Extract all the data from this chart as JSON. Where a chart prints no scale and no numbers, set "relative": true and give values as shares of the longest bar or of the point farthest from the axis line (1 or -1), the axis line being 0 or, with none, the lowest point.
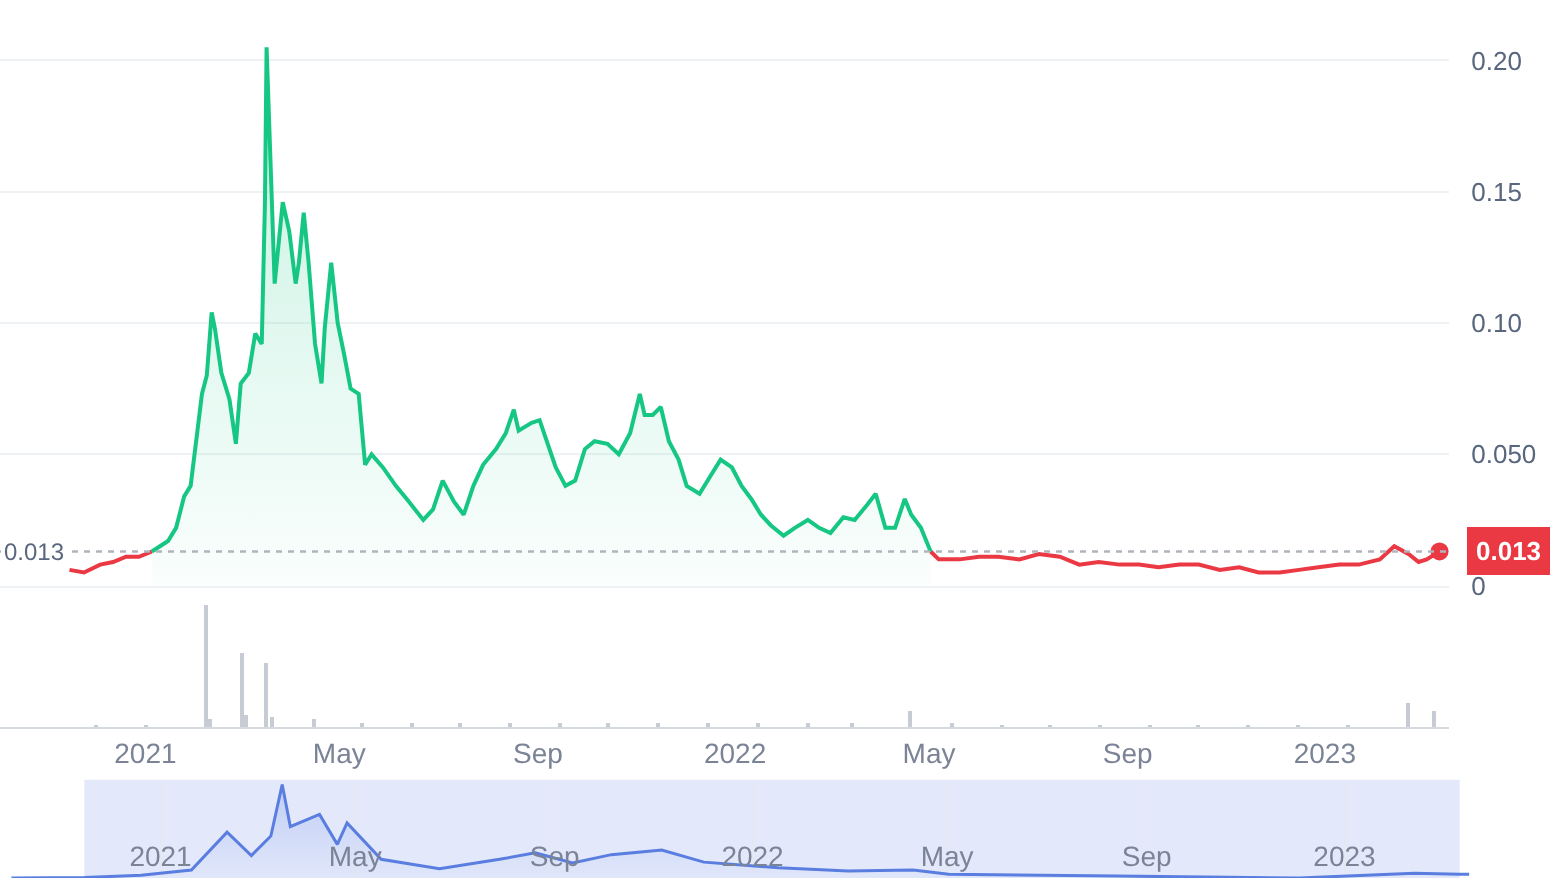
{
  "chart_data": [
    {
      "type": "line",
      "x": [
        "2020-11-15",
        "2020-11-24",
        "2020-12-04",
        "2020-12-12",
        "2020-12-20",
        "2020-12-28",
        "2021-01-05",
        "2021-01-10",
        "2021-01-15",
        "2021-01-20",
        "2021-01-25",
        "2021-01-29",
        "2021-02-02",
        "2021-02-05",
        "2021-02-08",
        "2021-02-11",
        "2021-02-13",
        "2021-02-17",
        "2021-02-22",
        "2021-02-26",
        "2021-03-01",
        "2021-03-06",
        "2021-03-10",
        "2021-03-14",
        "2021-03-16",
        "2021-03-17",
        "2021-03-19",
        "2021-03-22",
        "2021-03-27",
        "2021-03-31",
        "2021-04-04",
        "2021-04-06",
        "2021-04-09",
        "2021-04-12",
        "2021-04-16",
        "2021-04-20",
        "2021-04-22",
        "2021-04-26",
        "2021-04-30",
        "2021-05-04",
        "2021-05-08",
        "2021-05-13",
        "2021-05-17",
        "2021-05-21",
        "2021-05-28",
        "2021-06-05",
        "2021-06-13",
        "2021-06-22",
        "2021-06-28",
        "2021-07-04",
        "2021-07-11",
        "2021-07-17",
        "2021-07-23",
        "2021-07-29",
        "2021-08-06",
        "2021-08-12",
        "2021-08-17",
        "2021-08-20",
        "2021-08-28",
        "2021-09-02",
        "2021-09-07",
        "2021-09-12",
        "2021-09-18",
        "2021-09-24",
        "2021-09-30",
        "2021-10-06",
        "2021-10-14",
        "2021-10-21",
        "2021-10-28",
        "2021-11-03",
        "2021-11-06",
        "2021-11-11",
        "2021-11-16",
        "2021-11-21",
        "2021-11-27",
        "2021-12-02",
        "2021-12-10",
        "2021-12-17",
        "2021-12-23",
        "2021-12-30",
        "2022-01-05",
        "2022-01-11",
        "2022-01-17",
        "2022-01-23",
        "2022-01-31",
        "2022-02-07",
        "2022-02-15",
        "2022-02-22",
        "2022-03-01",
        "2022-03-09",
        "2022-03-16",
        "2022-03-24",
        "2022-03-29",
        "2022-04-04",
        "2022-04-10",
        "2022-04-16",
        "2022-04-20",
        "2022-04-26",
        "2022-05-02",
        "2022-05-07",
        "2022-05-20",
        "2022-06-01",
        "2022-06-13",
        "2022-06-26",
        "2022-07-08",
        "2022-07-21",
        "2022-08-02",
        "2022-08-14",
        "2022-08-27",
        "2022-09-08",
        "2022-09-20",
        "2022-10-03",
        "2022-10-15",
        "2022-10-28",
        "2022-11-09",
        "2022-11-21",
        "2022-12-04",
        "2022-12-16",
        "2022-12-28",
        "2023-01-10",
        "2023-01-22",
        "2023-02-04",
        "2023-02-13",
        "2023-02-22",
        "2023-02-28",
        "2023-03-05",
        "2023-03-13"
      ],
      "series": [
        {
          "type": "line",
          "color": "#ea3943",
          "values": [
            0.006,
            0.005,
            0.008,
            0.009,
            0.011,
            0.011,
            0.013,
            null,
            null,
            null,
            null,
            null,
            null,
            null,
            null,
            null,
            null,
            null,
            null,
            null,
            null,
            null,
            null,
            null,
            null,
            null,
            null,
            null,
            null,
            null,
            null,
            null,
            null,
            null,
            null,
            null,
            null,
            null,
            null,
            null,
            null,
            null,
            null,
            null,
            null,
            null,
            null,
            null,
            null,
            null,
            null,
            null,
            null,
            null,
            null,
            null,
            null,
            null,
            null,
            null,
            null,
            null,
            null,
            null,
            null,
            null,
            null,
            null,
            null,
            null,
            null,
            null,
            null,
            null,
            null,
            null,
            null,
            null,
            null,
            null,
            null,
            null,
            null,
            null,
            null,
            null,
            null,
            null,
            null,
            null,
            null,
            null,
            null,
            null,
            null,
            null,
            null,
            null,
            0.013,
            0.01,
            0.01,
            0.011,
            0.011,
            0.01,
            0.012,
            0.011,
            0.008,
            0.009,
            0.008,
            0.008,
            0.007,
            0.008,
            0.008,
            0.006,
            0.007,
            0.005,
            0.005,
            0.006,
            0.007,
            0.008,
            0.008,
            0.01,
            0.015,
            0.012,
            0.009,
            0.01,
            0.013
          ]
        },
        {
          "type": "area",
          "color": "#16c784",
          "values": [
            null,
            null,
            null,
            null,
            null,
            null,
            0.013,
            0.015,
            0.017,
            0.022,
            0.034,
            0.038,
            0.058,
            0.073,
            0.08,
            0.104,
            0.098,
            0.081,
            0.071,
            0.054,
            0.077,
            0.081,
            0.096,
            0.092,
            0.146,
            0.205,
            0.169,
            0.115,
            0.146,
            0.135,
            0.115,
            0.123,
            0.142,
            0.123,
            0.092,
            0.077,
            0.098,
            0.123,
            0.1,
            0.088,
            0.075,
            0.073,
            0.046,
            0.05,
            0.045,
            0.038,
            0.032,
            0.025,
            0.029,
            0.04,
            0.032,
            0.027,
            0.038,
            0.046,
            0.052,
            0.058,
            0.067,
            0.059,
            0.062,
            0.063,
            0.054,
            0.045,
            0.038,
            0.04,
            0.052,
            0.055,
            0.054,
            0.05,
            0.058,
            0.073,
            0.065,
            0.065,
            0.068,
            0.055,
            0.048,
            0.038,
            0.035,
            0.042,
            0.048,
            0.045,
            0.038,
            0.033,
            0.027,
            0.023,
            0.019,
            0.022,
            0.025,
            0.022,
            0.02,
            0.026,
            0.025,
            0.031,
            0.035,
            0.022,
            0.022,
            0.033,
            0.027,
            0.022,
            0.013,
            null,
            null,
            null,
            null,
            null,
            null,
            null,
            null,
            null,
            null,
            null,
            null,
            null,
            null,
            null,
            null,
            null,
            null,
            null,
            null,
            null,
            null,
            null,
            null,
            null,
            null,
            null,
            null
          ]
        }
      ],
      "xlim": [
        "2020-10-03",
        "2023-03-19"
      ],
      "ylim": [
        0,
        0.223
      ],
      "yticks": [
        0,
        {
          "value": 0.05,
          "label": "0.050"
        },
        {
          "value": 0.1,
          "label": "0.10"
        },
        {
          "value": 0.15,
          "label": "0.15"
        },
        {
          "value": 0.2,
          "label": "0.20"
        }
      ],
      "grid": "y",
      "tick_labels": "y",
      "ref_lines": [
        {
          "axis": "y",
          "value": 0.013,
          "label": "0.013",
          "color": "#b0b4bd",
          "line_style": "dotted"
        }
      ],
      "annotations": [
        {
          "text": "0.013",
          "x": "2023-03-13",
          "y": 0.013
        }
      ]
    },
    {
      "type": "bar",
      "relative": true,
      "color": "#c7cbd3",
      "x": [
        "2020-12-01",
        "2021-01-01",
        "2021-02-08",
        "2021-02-10",
        "2021-03-02",
        "2021-03-05",
        "2021-03-17",
        "2021-03-20",
        "2021-04-15",
        "2021-05-15",
        "2021-06-15",
        "2021-07-15",
        "2021-08-15",
        "2021-09-15",
        "2021-10-15",
        "2021-11-15",
        "2021-12-15",
        "2022-01-15",
        "2022-02-15",
        "2022-03-15",
        "2022-04-20",
        "2022-05-15",
        "2022-06-15",
        "2022-07-15",
        "2022-08-15",
        "2022-09-15",
        "2022-10-15",
        "2022-11-15",
        "2022-12-15",
        "2023-01-15",
        "2023-02-22",
        "2023-03-10"
      ],
      "values": [
        0.02,
        0.02,
        1,
        0.06,
        0.61,
        0.1,
        0.53,
        0.08,
        0.06,
        0.04,
        0.03,
        0.03,
        0.04,
        0.04,
        0.03,
        0.04,
        0.03,
        0.03,
        0.03,
        0.03,
        0.14,
        0.03,
        0.02,
        0.02,
        0.02,
        0.02,
        0.02,
        0.02,
        0.02,
        0.02,
        0.2,
        0.14
      ],
      "xlim": [
        "2020-10-03",
        "2023-03-19"
      ],
      "xticks": [
        {
          "value": "2021-01-01",
          "label": "2021"
        },
        {
          "value": "2021-05-01",
          "label": "May"
        },
        {
          "value": "2021-09-01",
          "label": "Sep"
        },
        {
          "value": "2022-01-01",
          "label": "2022"
        },
        {
          "value": "2022-05-01",
          "label": "May"
        },
        {
          "value": "2022-09-01",
          "label": "Sep"
        },
        {
          "value": "2023-01-01",
          "label": "2023"
        }
      ],
      "tick_labels": "x",
      "grid": false
    },
    {
      "type": "area",
      "relative": true,
      "color": "#5a7de0",
      "x": [
        "2020-10-01",
        "2020-11-15",
        "2020-12-20",
        "2021-01-20",
        "2021-02-11",
        "2021-02-26",
        "2021-03-10",
        "2021-03-17",
        "2021-03-22",
        "2021-04-09",
        "2021-04-20",
        "2021-04-26",
        "2021-05-17",
        "2021-06-22",
        "2021-07-29",
        "2021-08-20",
        "2021-09-12",
        "2021-10-06",
        "2021-11-06",
        "2021-12-02",
        "2022-01-17",
        "2022-03-01",
        "2022-04-10",
        "2022-05-02",
        "2022-08-14",
        "2022-12-04",
        "2023-02-13",
        "2023-03-13",
        "2023-03-19"
      ],
      "values": [
        0,
        0.005,
        0.03,
        0.085,
        0.49,
        0.24,
        0.45,
        1,
        0.55,
        0.68,
        0.36,
        0.59,
        0.2,
        0.1,
        0.2,
        0.27,
        0.16,
        0.25,
        0.3,
        0.17,
        0.11,
        0.075,
        0.085,
        0.04,
        0.02,
        0,
        0.05,
        0.04,
        0.04
      ],
      "xlim": [
        "2020-09-24",
        "2023-03-19"
      ],
      "xticks": [
        {
          "value": "2021-01-01",
          "label": "2021"
        },
        {
          "value": "2021-05-01",
          "label": "May"
        },
        {
          "value": "2021-09-01",
          "label": "Sep"
        },
        {
          "value": "2022-01-01",
          "label": "2022"
        },
        {
          "value": "2022-05-01",
          "label": "May"
        },
        {
          "value": "2022-09-01",
          "label": "Sep"
        },
        {
          "value": "2023-01-01",
          "label": "2023"
        }
      ],
      "tick_labels": "x",
      "grid": "x",
      "bands": [
        {
          "axis": "x",
          "from": "2020-11-15",
          "to": "2023-03-13",
          "color": "#e3e9fb"
        }
      ]
    }
  ]
}
